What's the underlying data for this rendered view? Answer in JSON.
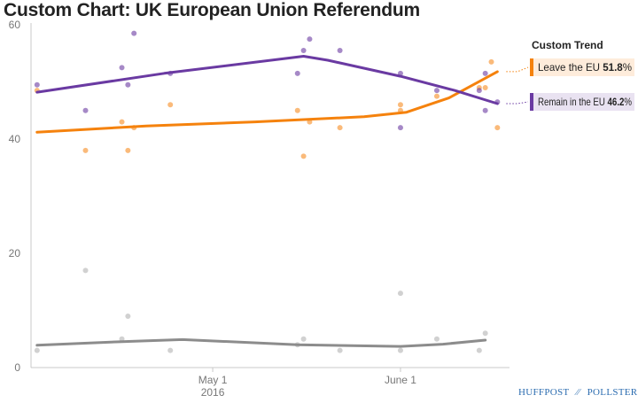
{
  "title": "Custom Chart: UK European Union Referendum",
  "brand": {
    "left": "HUFFPOST",
    "separator": "⁄⁄",
    "right": "POLLSTER"
  },
  "colors": {
    "leave": "#f5820d",
    "remain": "#6a3aa2",
    "undecided": "#8c8c8c",
    "axis": "#c8c8c8"
  },
  "chart_data": {
    "type": "scatter",
    "title": "Custom Chart: UK European Union Referendum",
    "ylim": [
      0,
      60
    ],
    "yticks": [
      0,
      20,
      40,
      60
    ],
    "xlim": [
      "2016-04-01",
      "2016-06-19"
    ],
    "xticks": [
      {
        "date": "2016-05-01",
        "label": "May 1",
        "sublabel": "2016"
      },
      {
        "date": "2016-06-01",
        "label": "June 1",
        "sublabel": ""
      }
    ],
    "grid": false,
    "legend": {
      "title": "Custom Trend",
      "position": "right",
      "entries": [
        {
          "series": "leave",
          "label": "Leave the EU",
          "value": "51.8",
          "unit": "%"
        },
        {
          "series": "remain",
          "label": "Remain in the EU",
          "value": "46.2",
          "unit": "%"
        }
      ]
    },
    "series": [
      {
        "id": "leave",
        "name": "Leave the EU",
        "color": "#f5820d",
        "trend": [
          {
            "x": "2016-04-02",
            "y": 41.2
          },
          {
            "x": "2016-04-20",
            "y": 42.3
          },
          {
            "x": "2016-05-08",
            "y": 43.0
          },
          {
            "x": "2016-05-26",
            "y": 43.9
          },
          {
            "x": "2016-06-02",
            "y": 44.7
          },
          {
            "x": "2016-06-09",
            "y": 47.2
          },
          {
            "x": "2016-06-17",
            "y": 51.8
          }
        ],
        "points": [
          {
            "x": "2016-04-02",
            "y": 48.5
          },
          {
            "x": "2016-04-10",
            "y": 38.0
          },
          {
            "x": "2016-04-16",
            "y": 43.0
          },
          {
            "x": "2016-04-17",
            "y": 38.0
          },
          {
            "x": "2016-04-18",
            "y": 42.0
          },
          {
            "x": "2016-04-24",
            "y": 46.0
          },
          {
            "x": "2016-05-15",
            "y": 45.0
          },
          {
            "x": "2016-05-16",
            "y": 37.0
          },
          {
            "x": "2016-05-17",
            "y": 43.0
          },
          {
            "x": "2016-05-22",
            "y": 42.0
          },
          {
            "x": "2016-06-01",
            "y": 45.0
          },
          {
            "x": "2016-06-01",
            "y": 46.0
          },
          {
            "x": "2016-06-07",
            "y": 47.5
          },
          {
            "x": "2016-06-14",
            "y": 49.0
          },
          {
            "x": "2016-06-15",
            "y": 49.0
          },
          {
            "x": "2016-06-16",
            "y": 53.5
          },
          {
            "x": "2016-06-17",
            "y": 42.0
          }
        ]
      },
      {
        "id": "remain",
        "name": "Remain in the EU",
        "color": "#6a3aa2",
        "trend": [
          {
            "x": "2016-04-02",
            "y": 48.2
          },
          {
            "x": "2016-04-23",
            "y": 51.5
          },
          {
            "x": "2016-05-16",
            "y": 54.5
          },
          {
            "x": "2016-05-20",
            "y": 53.8
          },
          {
            "x": "2016-06-01",
            "y": 51.0
          },
          {
            "x": "2016-06-10",
            "y": 48.5
          },
          {
            "x": "2016-06-17",
            "y": 46.2
          }
        ],
        "points": [
          {
            "x": "2016-04-02",
            "y": 49.5
          },
          {
            "x": "2016-04-10",
            "y": 45.0
          },
          {
            "x": "2016-04-16",
            "y": 52.5
          },
          {
            "x": "2016-04-17",
            "y": 49.5
          },
          {
            "x": "2016-04-18",
            "y": 58.5
          },
          {
            "x": "2016-04-24",
            "y": 51.5
          },
          {
            "x": "2016-05-15",
            "y": 51.5
          },
          {
            "x": "2016-05-16",
            "y": 55.5
          },
          {
            "x": "2016-05-17",
            "y": 57.5
          },
          {
            "x": "2016-05-22",
            "y": 55.5
          },
          {
            "x": "2016-06-01",
            "y": 42.0
          },
          {
            "x": "2016-06-01",
            "y": 51.5
          },
          {
            "x": "2016-06-07",
            "y": 48.5
          },
          {
            "x": "2016-06-14",
            "y": 48.5
          },
          {
            "x": "2016-06-15",
            "y": 45.0
          },
          {
            "x": "2016-06-15",
            "y": 51.5
          },
          {
            "x": "2016-06-17",
            "y": 46.5
          }
        ]
      },
      {
        "id": "undecided",
        "name": "",
        "color": "#8c8c8c",
        "trend": [
          {
            "x": "2016-04-02",
            "y": 3.9
          },
          {
            "x": "2016-04-15",
            "y": 4.5
          },
          {
            "x": "2016-04-26",
            "y": 4.9
          },
          {
            "x": "2016-05-15",
            "y": 4.0
          },
          {
            "x": "2016-06-01",
            "y": 3.7
          },
          {
            "x": "2016-06-08",
            "y": 4.1
          },
          {
            "x": "2016-06-15",
            "y": 4.8
          }
        ],
        "points": [
          {
            "x": "2016-04-02",
            "y": 3.0
          },
          {
            "x": "2016-04-10",
            "y": 17.0
          },
          {
            "x": "2016-04-16",
            "y": 5.0
          },
          {
            "x": "2016-04-17",
            "y": 9.0
          },
          {
            "x": "2016-04-24",
            "y": 3.0
          },
          {
            "x": "2016-05-15",
            "y": 4.0
          },
          {
            "x": "2016-05-16",
            "y": 5.0
          },
          {
            "x": "2016-05-22",
            "y": 3.0
          },
          {
            "x": "2016-06-01",
            "y": 13.0
          },
          {
            "x": "2016-06-01",
            "y": 3.0
          },
          {
            "x": "2016-06-07",
            "y": 5.0
          },
          {
            "x": "2016-06-14",
            "y": 3.0
          },
          {
            "x": "2016-06-15",
            "y": 6.0
          }
        ]
      }
    ]
  }
}
